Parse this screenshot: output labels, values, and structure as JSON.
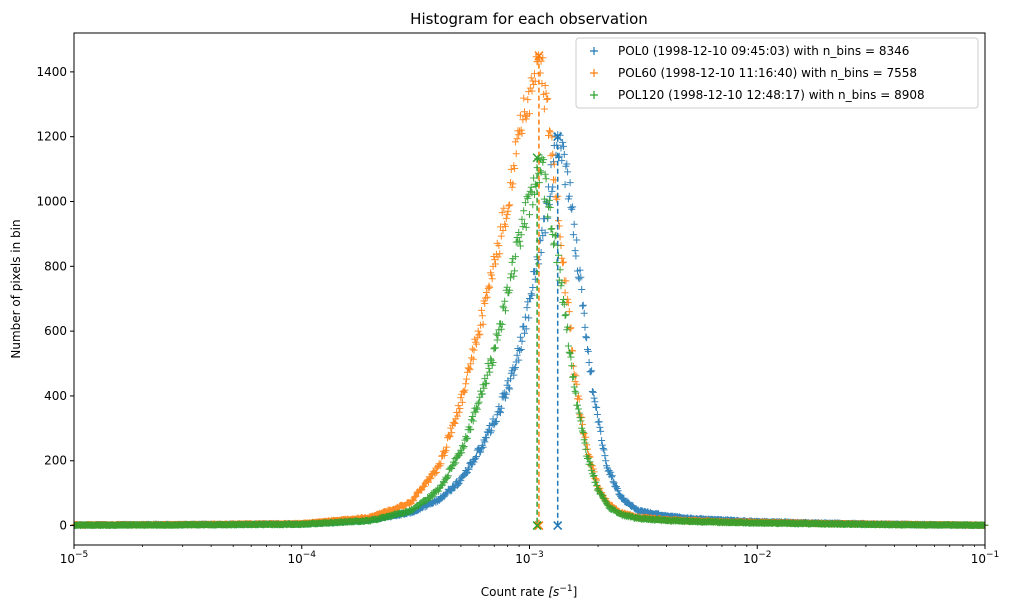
{
  "chart_data": {
    "type": "scatter",
    "title": "Histogram for each observation",
    "xlabel": "Count rate [s⁻¹]",
    "xlabel_main": "Count rate ",
    "xlabel_unit_base": "s",
    "xlabel_unit_exp": "−1",
    "ylabel": "Number of pixels in bin",
    "xscale": "log",
    "xlim": [
      1e-05,
      0.1
    ],
    "ylim": [
      -60,
      1520
    ],
    "grid": false,
    "legend_position": "top-right",
    "marker": "+",
    "x_ticks": [
      {
        "value": 1e-05,
        "base": "10",
        "exp": "−5"
      },
      {
        "value": 0.0001,
        "base": "10",
        "exp": "−4"
      },
      {
        "value": 0.001,
        "base": "10",
        "exp": "−3"
      },
      {
        "value": 0.01,
        "base": "10",
        "exp": "−2"
      },
      {
        "value": 0.1,
        "base": "10",
        "exp": "−1"
      }
    ],
    "y_ticks": [
      0,
      200,
      400,
      600,
      800,
      1000,
      1200,
      1400
    ],
    "y_tick_labels": [
      "0",
      "200",
      "400",
      "600",
      "800",
      "1000",
      "1200",
      "1400"
    ],
    "series": [
      {
        "name": "POL0 (1998-12-10 09:45:03) with n_bins = 8346",
        "color": "#1f77b4",
        "peak_marker": {
          "x": 0.00133,
          "y": 1200
        },
        "points": [
          [
            1e-05,
            2
          ],
          [
            3e-05,
            3
          ],
          [
            0.0001,
            5
          ],
          [
            0.0002,
            18
          ],
          [
            0.0003,
            40
          ],
          [
            0.0004,
            80
          ],
          [
            0.0005,
            140
          ],
          [
            0.0006,
            230
          ],
          [
            0.0007,
            320
          ],
          [
            0.0008,
            420
          ],
          [
            0.0009,
            540
          ],
          [
            0.001,
            680
          ],
          [
            0.0011,
            830
          ],
          [
            0.0012,
            990
          ],
          [
            0.00125,
            1080
          ],
          [
            0.0013,
            1150
          ],
          [
            0.00135,
            1200
          ],
          [
            0.0014,
            1140
          ],
          [
            0.0015,
            1030
          ],
          [
            0.0016,
            870
          ],
          [
            0.0017,
            700
          ],
          [
            0.0018,
            560
          ],
          [
            0.0019,
            420
          ],
          [
            0.002,
            320
          ],
          [
            0.0022,
            180
          ],
          [
            0.0025,
            90
          ],
          [
            0.003,
            45
          ],
          [
            0.004,
            30
          ],
          [
            0.005,
            22
          ],
          [
            0.007,
            17
          ],
          [
            0.01,
            12
          ],
          [
            0.02,
            7
          ],
          [
            0.05,
            3
          ],
          [
            0.1,
            1
          ]
        ]
      },
      {
        "name": "POL60 (1998-12-10 11:16:40) with n_bins = 7558",
        "color": "#ff7f0e",
        "peak_marker": {
          "x": 0.0011,
          "y": 1450
        },
        "points": [
          [
            1e-05,
            2
          ],
          [
            3e-05,
            3
          ],
          [
            0.0001,
            6
          ],
          [
            0.0002,
            25
          ],
          [
            0.0003,
            70
          ],
          [
            0.0004,
            180
          ],
          [
            0.0005,
            380
          ],
          [
            0.0006,
            600
          ],
          [
            0.0007,
            800
          ],
          [
            0.0008,
            1000
          ],
          [
            0.0009,
            1200
          ],
          [
            0.001,
            1330
          ],
          [
            0.00105,
            1390
          ],
          [
            0.0011,
            1450
          ],
          [
            0.00115,
            1380
          ],
          [
            0.0012,
            1260
          ],
          [
            0.0013,
            1050
          ],
          [
            0.0014,
            820
          ],
          [
            0.0015,
            620
          ],
          [
            0.0016,
            440
          ],
          [
            0.0017,
            320
          ],
          [
            0.0018,
            230
          ],
          [
            0.002,
            120
          ],
          [
            0.0022,
            70
          ],
          [
            0.0025,
            40
          ],
          [
            0.003,
            25
          ],
          [
            0.004,
            18
          ],
          [
            0.005,
            15
          ],
          [
            0.007,
            12
          ],
          [
            0.01,
            10
          ],
          [
            0.02,
            6
          ],
          [
            0.05,
            3
          ],
          [
            0.1,
            1
          ]
        ]
      },
      {
        "name": "POL120 (1998-12-10 12:48:17) with n_bins = 8908",
        "color": "#2ca02c",
        "peak_marker": {
          "x": 0.00108,
          "y": 1135
        },
        "points": [
          [
            1e-05,
            1
          ],
          [
            3e-05,
            2
          ],
          [
            0.0001,
            4
          ],
          [
            0.0002,
            15
          ],
          [
            0.0003,
            45
          ],
          [
            0.0004,
            110
          ],
          [
            0.0005,
            230
          ],
          [
            0.0006,
            380
          ],
          [
            0.0007,
            540
          ],
          [
            0.0008,
            720
          ],
          [
            0.0009,
            880
          ],
          [
            0.001,
            1000
          ],
          [
            0.00105,
            1060
          ],
          [
            0.0011,
            1100
          ],
          [
            0.00115,
            1080
          ],
          [
            0.0012,
            1000
          ],
          [
            0.0013,
            880
          ],
          [
            0.0014,
            710
          ],
          [
            0.0015,
            540
          ],
          [
            0.0016,
            400
          ],
          [
            0.0017,
            300
          ],
          [
            0.0018,
            210
          ],
          [
            0.002,
            110
          ],
          [
            0.0022,
            60
          ],
          [
            0.0025,
            35
          ],
          [
            0.003,
            22
          ],
          [
            0.004,
            16
          ],
          [
            0.005,
            13
          ],
          [
            0.007,
            10
          ],
          [
            0.01,
            8
          ],
          [
            0.02,
            5
          ],
          [
            0.05,
            2
          ],
          [
            0.1,
            1
          ]
        ]
      }
    ]
  }
}
